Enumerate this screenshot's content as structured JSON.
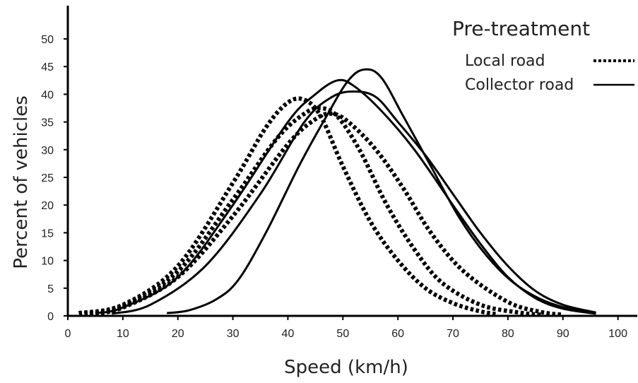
{
  "chart_data": {
    "type": "line",
    "xlabel": "Speed (km/h)",
    "ylabel": "Percent of vehicles",
    "xlim": [
      0,
      103
    ],
    "ylim": [
      0,
      56
    ],
    "xticks": [
      0,
      10,
      20,
      30,
      40,
      50,
      60,
      70,
      80,
      90,
      100
    ],
    "yticks": [
      0,
      5,
      10,
      15,
      20,
      25,
      30,
      35,
      40,
      45,
      50
    ],
    "grid": false,
    "legend": {
      "placement": "top-right",
      "title": "Pre-treatment",
      "entries": [
        {
          "label": "Local road",
          "style": "dotted"
        },
        {
          "label": "Collector road",
          "style": "solid"
        }
      ]
    },
    "series": [
      {
        "group": "Local road",
        "style": "dotted",
        "points": [
          [
            2,
            0.5
          ],
          [
            10,
            2
          ],
          [
            20,
            9
          ],
          [
            30,
            24
          ],
          [
            36,
            34
          ],
          [
            40,
            38.5
          ],
          [
            43,
            39
          ],
          [
            46,
            36
          ],
          [
            50,
            27
          ],
          [
            55,
            17
          ],
          [
            60,
            10
          ],
          [
            65,
            5
          ],
          [
            70,
            2.3
          ],
          [
            75,
            0.8
          ],
          [
            78,
            0.3
          ]
        ]
      },
      {
        "group": "Local road",
        "style": "dotted",
        "points": [
          [
            3,
            0.4
          ],
          [
            10,
            1.8
          ],
          [
            20,
            8
          ],
          [
            30,
            21
          ],
          [
            38,
            32
          ],
          [
            43,
            36.5
          ],
          [
            46,
            37.5
          ],
          [
            49,
            36
          ],
          [
            53,
            30
          ],
          [
            58,
            20
          ],
          [
            63,
            12
          ],
          [
            68,
            6
          ],
          [
            75,
            2
          ],
          [
            82,
            0.6
          ],
          [
            86,
            0.2
          ]
        ]
      },
      {
        "group": "Local road",
        "style": "dotted",
        "points": [
          [
            4,
            0.3
          ],
          [
            10,
            1.5
          ],
          [
            20,
            7
          ],
          [
            30,
            18
          ],
          [
            40,
            31
          ],
          [
            45,
            35.5
          ],
          [
            48,
            36.5
          ],
          [
            51,
            35
          ],
          [
            56,
            30
          ],
          [
            61,
            23
          ],
          [
            66,
            15
          ],
          [
            72,
            8
          ],
          [
            80,
            2.5
          ],
          [
            86,
            0.7
          ],
          [
            90,
            0.2
          ]
        ]
      },
      {
        "group": "Collector road",
        "style": "solid",
        "points": [
          [
            5,
            0.5
          ],
          [
            10,
            1.5
          ],
          [
            20,
            7
          ],
          [
            30,
            20
          ],
          [
            40,
            35
          ],
          [
            45,
            40
          ],
          [
            49,
            42.5
          ],
          [
            52,
            41.5
          ],
          [
            57,
            37
          ],
          [
            63,
            30
          ],
          [
            70,
            20
          ],
          [
            75,
            13
          ],
          [
            80,
            7
          ],
          [
            85,
            3.2
          ],
          [
            90,
            1.3
          ],
          [
            96,
            0.4
          ]
        ]
      },
      {
        "group": "Collector road",
        "style": "solid",
        "points": [
          [
            8,
            0.4
          ],
          [
            15,
            2
          ],
          [
            25,
            9
          ],
          [
            35,
            22
          ],
          [
            43,
            35
          ],
          [
            48,
            39.5
          ],
          [
            52,
            40.5
          ],
          [
            56,
            39.5
          ],
          [
            60,
            35
          ],
          [
            65,
            29
          ],
          [
            70,
            22
          ],
          [
            75,
            15
          ],
          [
            80,
            9
          ],
          [
            85,
            4.5
          ],
          [
            90,
            2
          ],
          [
            96,
            0.6
          ]
        ]
      },
      {
        "group": "Collector road",
        "style": "solid",
        "points": [
          [
            18,
            0.5
          ],
          [
            22,
            1
          ],
          [
            27,
            3
          ],
          [
            31,
            6.5
          ],
          [
            36,
            15
          ],
          [
            42,
            27
          ],
          [
            47,
            36
          ],
          [
            51,
            42.5
          ],
          [
            54,
            44.5
          ],
          [
            57,
            43
          ],
          [
            61,
            36
          ],
          [
            66,
            27
          ],
          [
            71,
            18
          ],
          [
            76,
            11
          ],
          [
            81,
            6
          ],
          [
            86,
            3
          ],
          [
            91,
            1.3
          ],
          [
            96,
            0.5
          ]
        ]
      }
    ]
  }
}
